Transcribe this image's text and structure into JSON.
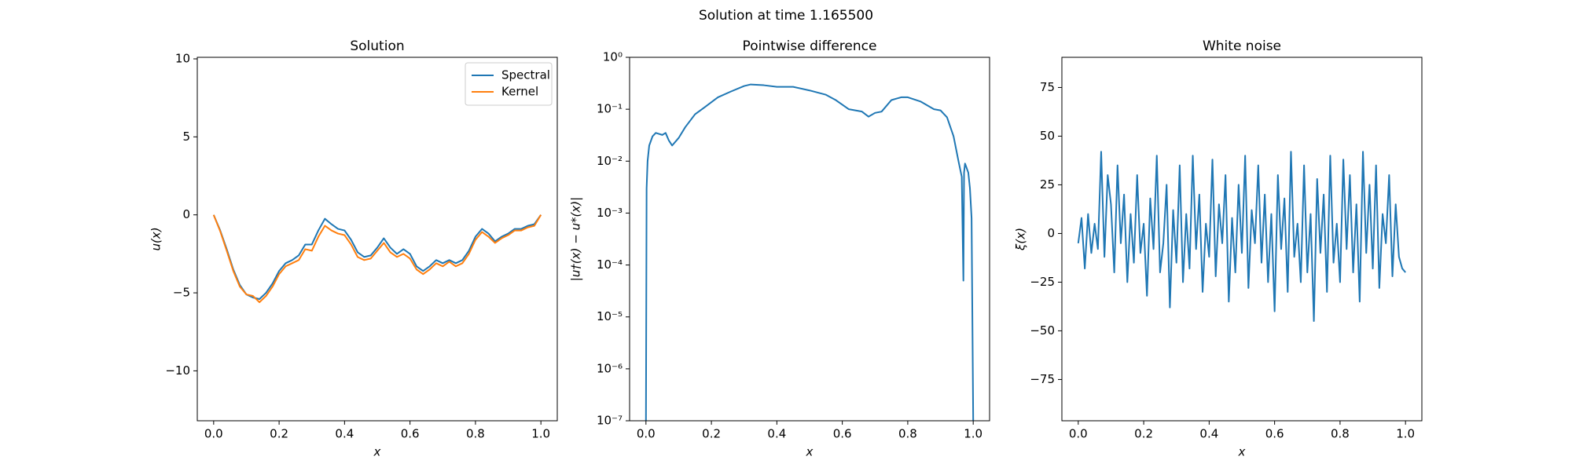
{
  "title": "Solution at time 1.165500",
  "chart_data": [
    {
      "type": "line",
      "title": "Solution",
      "xlabel": "x",
      "ylabel": "u(x)",
      "x": [
        0,
        0.02,
        0.04,
        0.06,
        0.08,
        0.1,
        0.12,
        0.14,
        0.16,
        0.18,
        0.2,
        0.22,
        0.24,
        0.26,
        0.28,
        0.3,
        0.32,
        0.34,
        0.36,
        0.38,
        0.4,
        0.42,
        0.44,
        0.46,
        0.48,
        0.5,
        0.52,
        0.54,
        0.56,
        0.58,
        0.6,
        0.62,
        0.64,
        0.66,
        0.68,
        0.7,
        0.72,
        0.74,
        0.76,
        0.78,
        0.8,
        0.82,
        0.84,
        0.86,
        0.88,
        0.9,
        0.92,
        0.94,
        0.96,
        0.98,
        1.0
      ],
      "series": [
        {
          "name": "Spectral",
          "color": "#1f77b4",
          "values": [
            0,
            -1,
            -2.2,
            -3.5,
            -4.5,
            -5.1,
            -5.3,
            -5.4,
            -5.0,
            -4.4,
            -3.6,
            -3.1,
            -2.9,
            -2.6,
            -1.9,
            -1.9,
            -1.0,
            -0.25,
            -0.6,
            -0.9,
            -1.0,
            -1.6,
            -2.4,
            -2.7,
            -2.6,
            -2.1,
            -1.5,
            -2.1,
            -2.5,
            -2.2,
            -2.5,
            -3.3,
            -3.6,
            -3.3,
            -2.9,
            -3.1,
            -2.9,
            -3.1,
            -2.9,
            -2.3,
            -1.4,
            -0.9,
            -1.2,
            -1.7,
            -1.4,
            -1.2,
            -0.9,
            -0.9,
            -0.7,
            -0.6,
            0
          ]
        },
        {
          "name": "Kernel",
          "color": "#ff7f0e",
          "values": [
            0,
            -1.05,
            -2.3,
            -3.6,
            -4.6,
            -5.1,
            -5.2,
            -5.6,
            -5.2,
            -4.6,
            -3.8,
            -3.3,
            -3.1,
            -2.9,
            -2.2,
            -2.3,
            -1.4,
            -0.7,
            -1.0,
            -1.2,
            -1.3,
            -1.9,
            -2.7,
            -2.9,
            -2.8,
            -2.3,
            -1.8,
            -2.4,
            -2.7,
            -2.5,
            -2.8,
            -3.5,
            -3.8,
            -3.5,
            -3.1,
            -3.3,
            -3.0,
            -3.3,
            -3.1,
            -2.5,
            -1.6,
            -1.1,
            -1.4,
            -1.8,
            -1.5,
            -1.3,
            -1.0,
            -1.0,
            -0.8,
            -0.7,
            0
          ]
        }
      ],
      "xlim": [
        -0.05,
        1.05
      ],
      "ylim": [
        -13.2,
        10.1
      ],
      "xticks": [
        {
          "value": 0,
          "label": "0.0"
        },
        {
          "value": 0.2,
          "label": "0.2"
        },
        {
          "value": 0.4,
          "label": "0.4"
        },
        {
          "value": 0.6,
          "label": "0.6"
        },
        {
          "value": 0.8,
          "label": "0.8"
        },
        {
          "value": 1,
          "label": "1.0"
        }
      ],
      "yticks": [
        {
          "value": -10,
          "label": "−10"
        },
        {
          "value": -5,
          "label": "−5"
        },
        0,
        5,
        10
      ],
      "legend": "upper right"
    },
    {
      "type": "line",
      "title": "Pointwise difference",
      "xlabel": "x",
      "ylabel": "|u†(x) − u*(x)|",
      "log_y": true,
      "x": [
        0,
        0.002,
        0.005,
        0.01,
        0.02,
        0.03,
        0.05,
        0.06,
        0.07,
        0.08,
        0.1,
        0.12,
        0.15,
        0.18,
        0.22,
        0.26,
        0.3,
        0.32,
        0.36,
        0.4,
        0.45,
        0.5,
        0.55,
        0.58,
        0.62,
        0.66,
        0.68,
        0.7,
        0.72,
        0.75,
        0.78,
        0.8,
        0.84,
        0.88,
        0.9,
        0.92,
        0.94,
        0.955,
        0.965,
        0.97,
        0.972,
        0.975,
        0.985,
        0.99,
        0.995,
        1.0
      ],
      "series": [
        {
          "color": "#1f77b4",
          "values": [
            1e-07,
            0.003,
            0.01,
            0.02,
            0.03,
            0.035,
            0.032,
            0.035,
            0.025,
            0.02,
            0.028,
            0.045,
            0.08,
            0.11,
            0.17,
            0.22,
            0.28,
            0.3,
            0.29,
            0.27,
            0.27,
            0.23,
            0.19,
            0.15,
            0.1,
            0.09,
            0.072,
            0.085,
            0.09,
            0.15,
            0.17,
            0.17,
            0.14,
            0.1,
            0.095,
            0.07,
            0.03,
            0.01,
            0.005,
            5e-05,
            0.006,
            0.009,
            0.006,
            0.003,
            0.0008,
            1e-07
          ]
        }
      ],
      "xlim": [
        -0.05,
        1.05
      ],
      "ylim": [
        1e-07,
        1
      ],
      "xticks": [
        {
          "value": 0,
          "label": "0.0"
        },
        {
          "value": 0.2,
          "label": "0.2"
        },
        {
          "value": 0.4,
          "label": "0.4"
        },
        {
          "value": 0.6,
          "label": "0.6"
        },
        {
          "value": 0.8,
          "label": "0.8"
        },
        {
          "value": 1,
          "label": "1.0"
        }
      ],
      "yticks": [
        {
          "value": 1e-07,
          "label": "10⁻⁷"
        },
        {
          "value": 1e-06,
          "label": "10⁻⁶"
        },
        {
          "value": 1e-05,
          "label": "10⁻⁵"
        },
        {
          "value": 0.0001,
          "label": "10⁻⁴"
        },
        {
          "value": 0.001,
          "label": "10⁻³"
        },
        {
          "value": 0.01,
          "label": "10⁻²"
        },
        {
          "value": 0.1,
          "label": "10⁻¹"
        },
        {
          "value": 1,
          "label": "10⁰"
        }
      ]
    },
    {
      "type": "line",
      "title": "White noise",
      "xlabel": "x",
      "ylabel": "ξ(x)",
      "x": [
        0,
        0.01,
        0.02,
        0.03,
        0.04,
        0.05,
        0.06,
        0.07,
        0.08,
        0.09,
        0.1,
        0.11,
        0.12,
        0.13,
        0.14,
        0.15,
        0.16,
        0.17,
        0.18,
        0.19,
        0.2,
        0.21,
        0.22,
        0.23,
        0.24,
        0.25,
        0.26,
        0.27,
        0.28,
        0.29,
        0.3,
        0.31,
        0.32,
        0.33,
        0.34,
        0.35,
        0.36,
        0.37,
        0.38,
        0.39,
        0.4,
        0.41,
        0.42,
        0.43,
        0.44,
        0.45,
        0.46,
        0.47,
        0.48,
        0.49,
        0.5,
        0.51,
        0.52,
        0.53,
        0.54,
        0.55,
        0.56,
        0.57,
        0.58,
        0.59,
        0.6,
        0.61,
        0.62,
        0.63,
        0.64,
        0.65,
        0.66,
        0.67,
        0.68,
        0.69,
        0.7,
        0.71,
        0.72,
        0.73,
        0.74,
        0.75,
        0.76,
        0.77,
        0.78,
        0.79,
        0.8,
        0.81,
        0.82,
        0.83,
        0.84,
        0.85,
        0.86,
        0.87,
        0.88,
        0.89,
        0.9,
        0.91,
        0.92,
        0.93,
        0.94,
        0.95,
        0.96,
        0.97,
        0.98,
        0.99,
        1.0
      ],
      "series": [
        {
          "color": "#1f77b4",
          "values": [
            -5,
            8,
            -18,
            10,
            -10,
            5,
            -8,
            42,
            -12,
            30,
            15,
            -20,
            35,
            -5,
            20,
            -25,
            10,
            -15,
            30,
            -10,
            5,
            -32,
            18,
            -8,
            40,
            -20,
            -5,
            25,
            -38,
            12,
            -15,
            35,
            -25,
            10,
            -18,
            40,
            -8,
            20,
            -30,
            5,
            -12,
            38,
            -22,
            15,
            -5,
            30,
            -35,
            8,
            -20,
            25,
            -10,
            40,
            -28,
            12,
            -5,
            35,
            -15,
            20,
            -25,
            10,
            -40,
            30,
            -8,
            18,
            -30,
            42,
            -12,
            5,
            -25,
            35,
            -20,
            10,
            -45,
            28,
            -10,
            20,
            -30,
            40,
            -15,
            5,
            -25,
            38,
            -8,
            30,
            -20,
            15,
            -35,
            42,
            -10,
            25,
            -18,
            35,
            -28,
            10,
            -5,
            30,
            -22,
            15,
            -12,
            -18,
            -20
          ]
        }
      ],
      "xlim": [
        -0.05,
        1.05
      ],
      "ylim": [
        -96.2,
        90.5
      ],
      "xticks": [
        {
          "value": 0,
          "label": "0.0"
        },
        {
          "value": 0.2,
          "label": "0.2"
        },
        {
          "value": 0.4,
          "label": "0.4"
        },
        {
          "value": 0.6,
          "label": "0.6"
        },
        {
          "value": 0.8,
          "label": "0.8"
        },
        {
          "value": 1,
          "label": "1.0"
        }
      ],
      "yticks": [
        {
          "value": -75,
          "label": "−75"
        },
        {
          "value": -50,
          "label": "−50"
        },
        {
          "value": -25,
          "label": "−25"
        },
        0,
        25,
        50,
        75
      ]
    }
  ]
}
